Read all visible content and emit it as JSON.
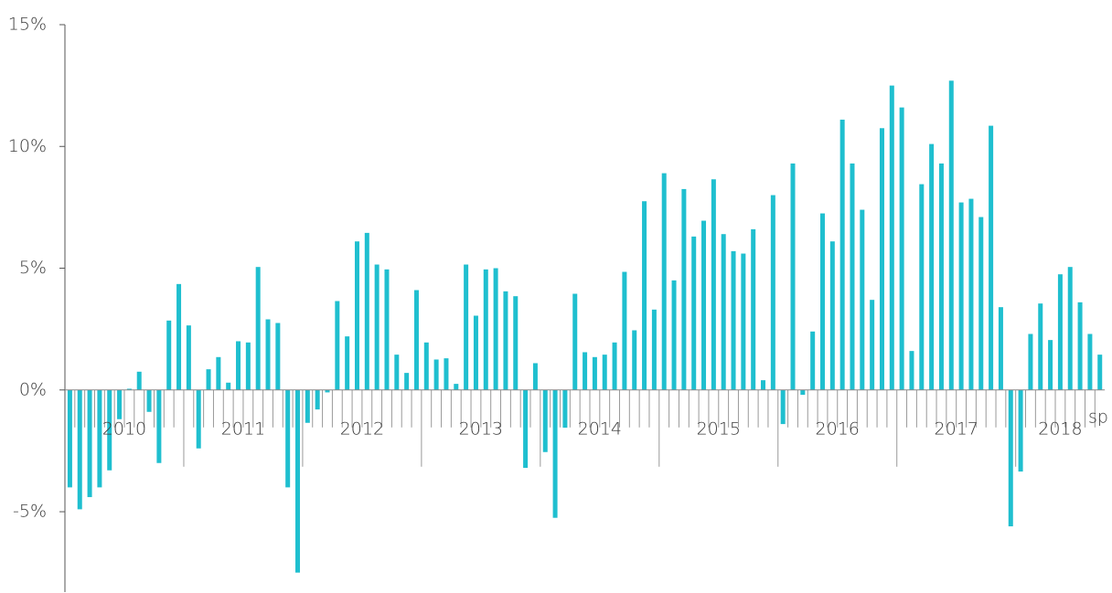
{
  "chart_data": {
    "type": "bar",
    "color": "#1fbfcf",
    "annotation": "sp",
    "year_labels": [
      "2010",
      "2011",
      "2012",
      "2013",
      "2014",
      "2015",
      "2016",
      "2017",
      "2018"
    ],
    "categories": [
      null,
      null,
      null,
      null,
      null,
      null,
      null,
      null,
      null,
      null,
      null,
      null,
      null,
      null,
      null,
      null,
      null,
      null,
      null,
      null,
      null,
      null,
      null,
      null,
      null,
      null,
      null,
      null,
      null,
      null,
      null,
      null,
      null,
      null,
      null,
      null,
      null,
      null,
      null,
      null,
      null,
      null,
      null,
      null,
      null,
      null,
      null,
      null,
      null,
      null,
      null,
      null,
      null,
      null,
      null,
      null,
      null,
      null,
      null,
      null,
      null,
      null,
      null,
      null,
      null,
      null,
      null,
      null,
      null,
      null,
      null,
      null,
      null,
      null,
      null,
      null,
      null,
      null,
      null,
      null,
      null,
      null,
      null,
      null,
      null,
      null,
      null,
      null,
      null,
      null,
      null,
      null,
      null,
      null,
      null,
      null,
      null,
      null,
      null,
      null,
      null,
      null,
      null,
      null,
      null
    ],
    "values": [
      -4.0,
      -4.9,
      -4.4,
      -4.0,
      -3.3,
      -1.2,
      0.05,
      0.75,
      -0.9,
      -3.0,
      2.85,
      4.35,
      2.65,
      -2.4,
      0.85,
      1.35,
      0.3,
      2.0,
      1.95,
      5.05,
      2.9,
      2.75,
      -4.0,
      -7.5,
      -1.35,
      -0.8,
      -0.1,
      3.65,
      2.2,
      6.1,
      6.45,
      5.15,
      4.95,
      1.45,
      0.7,
      4.1,
      1.95,
      1.25,
      1.3,
      0.25,
      5.15,
      3.05,
      4.95,
      5.0,
      4.05,
      3.85,
      -3.2,
      1.1,
      -2.55,
      -5.25,
      -1.55,
      3.95,
      1.55,
      1.35,
      1.45,
      1.95,
      4.85,
      2.45,
      7.75,
      3.3,
      8.9,
      4.5,
      8.25,
      6.3,
      6.95,
      8.65,
      6.4,
      5.7,
      5.6,
      6.6,
      0.4,
      8.0,
      -1.4,
      9.3,
      -0.2,
      2.4,
      7.25,
      6.1,
      11.1,
      9.3,
      7.4,
      3.7,
      10.75,
      12.5,
      11.6,
      1.6,
      8.45,
      10.1,
      9.3,
      12.7,
      7.7,
      7.85,
      7.1,
      10.85,
      3.4,
      -5.6,
      -3.35,
      2.3,
      3.55,
      2.05,
      4.75,
      5.05,
      3.6,
      2.3,
      1.45
    ],
    "ylim": [
      -8.3,
      15
    ],
    "yticks": [
      {
        "value": -5,
        "label": "-5%"
      },
      {
        "value": 0,
        "label": "0%"
      },
      {
        "value": 5,
        "label": "5%"
      },
      {
        "value": 10,
        "label": "10%"
      },
      {
        "value": 15,
        "label": "15%"
      }
    ]
  }
}
